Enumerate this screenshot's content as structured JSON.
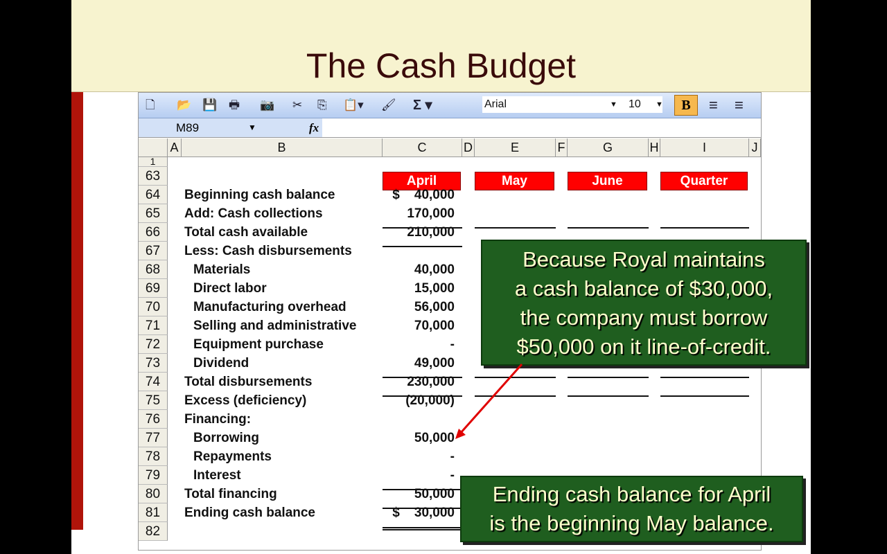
{
  "slide": {
    "title": "The Cash Budget"
  },
  "toolbar": {
    "icons": [
      "new-icon",
      "open-icon",
      "save-icon",
      "print-icon",
      "camera-icon",
      "cut-icon",
      "copy-icon",
      "paste-icon",
      "format-painter-icon",
      "autosum-icon"
    ],
    "font": "Arial",
    "size": "10",
    "bold": "B"
  },
  "formula_bar": {
    "name_box": "M89",
    "fx": "fx"
  },
  "columns": [
    "A",
    "B",
    "C",
    "D",
    "E",
    "F",
    "G",
    "H",
    "I",
    "J"
  ],
  "row_numbers": [
    "1",
    "63",
    "64",
    "65",
    "66",
    "67",
    "68",
    "69",
    "70",
    "71",
    "72",
    "73",
    "74",
    "75",
    "76",
    "77",
    "78",
    "79",
    "80",
    "81",
    "82"
  ],
  "months": [
    "April",
    "May",
    "June",
    "Quarter"
  ],
  "rows": [
    {
      "label": "Beginning cash balance",
      "value": "$    40,000",
      "indent": 0
    },
    {
      "label": "Add: Cash collections",
      "value": "170,000",
      "indent": 0
    },
    {
      "label": "Total cash available",
      "value": "210,000",
      "indent": 0
    },
    {
      "label": "Less: Cash disbursements",
      "value": "",
      "indent": 0
    },
    {
      "label": "Materials",
      "value": "40,000",
      "indent": 1
    },
    {
      "label": "Direct labor",
      "value": "15,000",
      "indent": 1
    },
    {
      "label": "Manufacturing overhead",
      "value": "56,000",
      "indent": 1
    },
    {
      "label": "Selling and administrative",
      "value": "70,000",
      "indent": 1
    },
    {
      "label": "Equipment purchase",
      "value": "-",
      "indent": 1
    },
    {
      "label": "Dividend",
      "value": "49,000",
      "indent": 1
    },
    {
      "label": "Total disbursements",
      "value": "230,000",
      "indent": 0
    },
    {
      "label": "Excess (deficiency)",
      "value": "(20,000)",
      "indent": 0
    },
    {
      "label": "Financing:",
      "value": "",
      "indent": 0
    },
    {
      "label": "Borrowing",
      "value": "50,000",
      "indent": 1
    },
    {
      "label": "Repayments",
      "value": "-",
      "indent": 1
    },
    {
      "label": "Interest",
      "value": "-",
      "indent": 1
    },
    {
      "label": "Total financing",
      "value": "50,000",
      "indent": 0
    },
    {
      "label": "Ending cash balance",
      "value": "$    30,000",
      "indent": 0
    }
  ],
  "callouts": {
    "borrow": [
      "Because Royal maintains",
      "a cash balance of $30,000,",
      "the company must borrow",
      "$50,000 on it line-of-credit."
    ],
    "ending": [
      "Ending cash balance for April",
      "is the beginning  May balance."
    ]
  },
  "colors": {
    "header_red": "#ff0000",
    "callout_green": "#1f5e1f",
    "arrow": "#e00000"
  }
}
